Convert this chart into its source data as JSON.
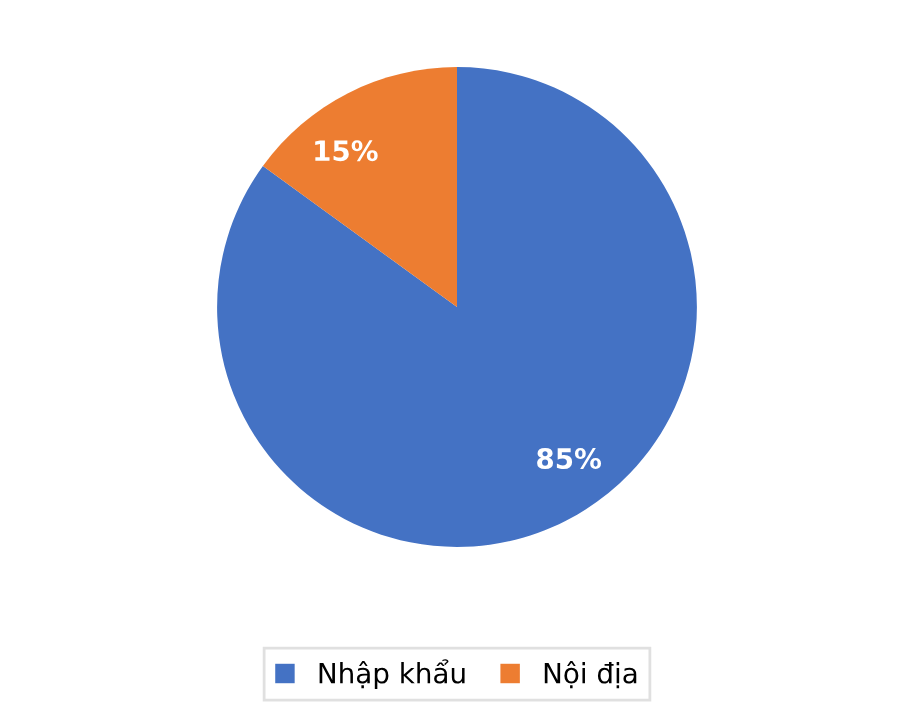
{
  "chart_data": {
    "type": "pie",
    "categories": [
      "Nhập khẩu",
      "Nội địa"
    ],
    "values": [
      85,
      15
    ],
    "colors": [
      "#4472c4",
      "#ed7d31"
    ],
    "value_labels": [
      "85%",
      "15%"
    ],
    "legend": "bottom"
  }
}
